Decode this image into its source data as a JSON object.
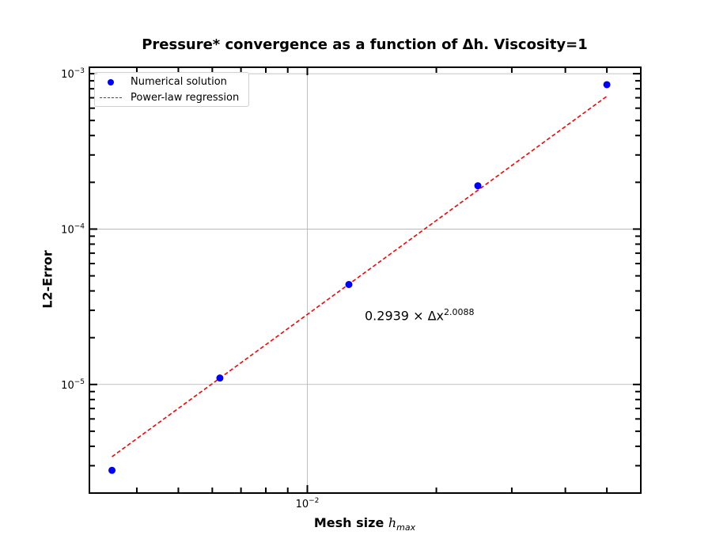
{
  "chart_data": {
    "type": "scatter",
    "title": "Pressure* convergence as a function of Δh. Viscosity=1",
    "xlabel": "Mesh size h_max",
    "ylabel": "L2-Error",
    "xscale": "log",
    "yscale": "log",
    "xlim": [
      0.0031,
      0.06
    ],
    "ylim": [
      2e-06,
      0.0011
    ],
    "grid": true,
    "legend_position": "top-left",
    "x_tick_labels": [
      {
        "value": 0.01,
        "base": "10",
        "exp": "−2"
      }
    ],
    "y_tick_labels": [
      {
        "value": 1e-05,
        "base": "10",
        "exp": "−5"
      },
      {
        "value": 0.0001,
        "base": "10",
        "exp": "−4"
      },
      {
        "value": 0.001,
        "base": "10",
        "exp": "−3"
      }
    ],
    "series": [
      {
        "name": "Numerical solution",
        "kind": "scatter",
        "color": "#0000ff",
        "x": [
          0.0035,
          0.00625,
          0.0125,
          0.025,
          0.05
        ],
        "y": [
          2.8e-06,
          1.1e-05,
          4.4e-05,
          0.00019,
          0.00085
        ]
      },
      {
        "name": "Power-law regression",
        "kind": "line",
        "style": "dashed",
        "color": "#ff0000",
        "coefficient": 0.2939,
        "exponent": 2.0088,
        "x_range": [
          0.0035,
          0.05
        ]
      }
    ],
    "annotation": {
      "coef": "0.2939",
      "times": "×",
      "var": "Δx",
      "exp": "2.0088"
    }
  }
}
